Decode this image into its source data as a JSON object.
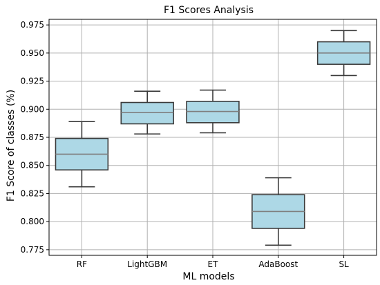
{
  "chart_data": {
    "type": "box",
    "title": "F1 Scores Analysis",
    "xlabel": "ML models",
    "ylabel": "F1 Score of classes (%)",
    "ylim": [
      0.77,
      0.98
    ],
    "yticks": [
      "0.775",
      "0.800",
      "0.825",
      "0.850",
      "0.875",
      "0.900",
      "0.925",
      "0.950",
      "0.975"
    ],
    "grid": true,
    "categories": [
      "RF",
      "LightGBM",
      "ET",
      "AdaBoost",
      "SL"
    ],
    "boxes": [
      {
        "category": "RF",
        "whisker_low": 0.831,
        "q1": 0.846,
        "median": 0.86,
        "q3": 0.874,
        "whisker_high": 0.889
      },
      {
        "category": "LightGBM",
        "whisker_low": 0.878,
        "q1": 0.887,
        "median": 0.897,
        "q3": 0.906,
        "whisker_high": 0.916
      },
      {
        "category": "ET",
        "whisker_low": 0.879,
        "q1": 0.888,
        "median": 0.898,
        "q3": 0.907,
        "whisker_high": 0.917
      },
      {
        "category": "AdaBoost",
        "whisker_low": 0.779,
        "q1": 0.794,
        "median": 0.809,
        "q3": 0.824,
        "whisker_high": 0.839
      },
      {
        "category": "SL",
        "whisker_low": 0.93,
        "q1": 0.94,
        "median": 0.95,
        "q3": 0.96,
        "whisker_high": 0.97
      }
    ],
    "box_color": "#add8e6",
    "edge_color": "#3a3a3a",
    "median_color": "#7f7f7f"
  }
}
